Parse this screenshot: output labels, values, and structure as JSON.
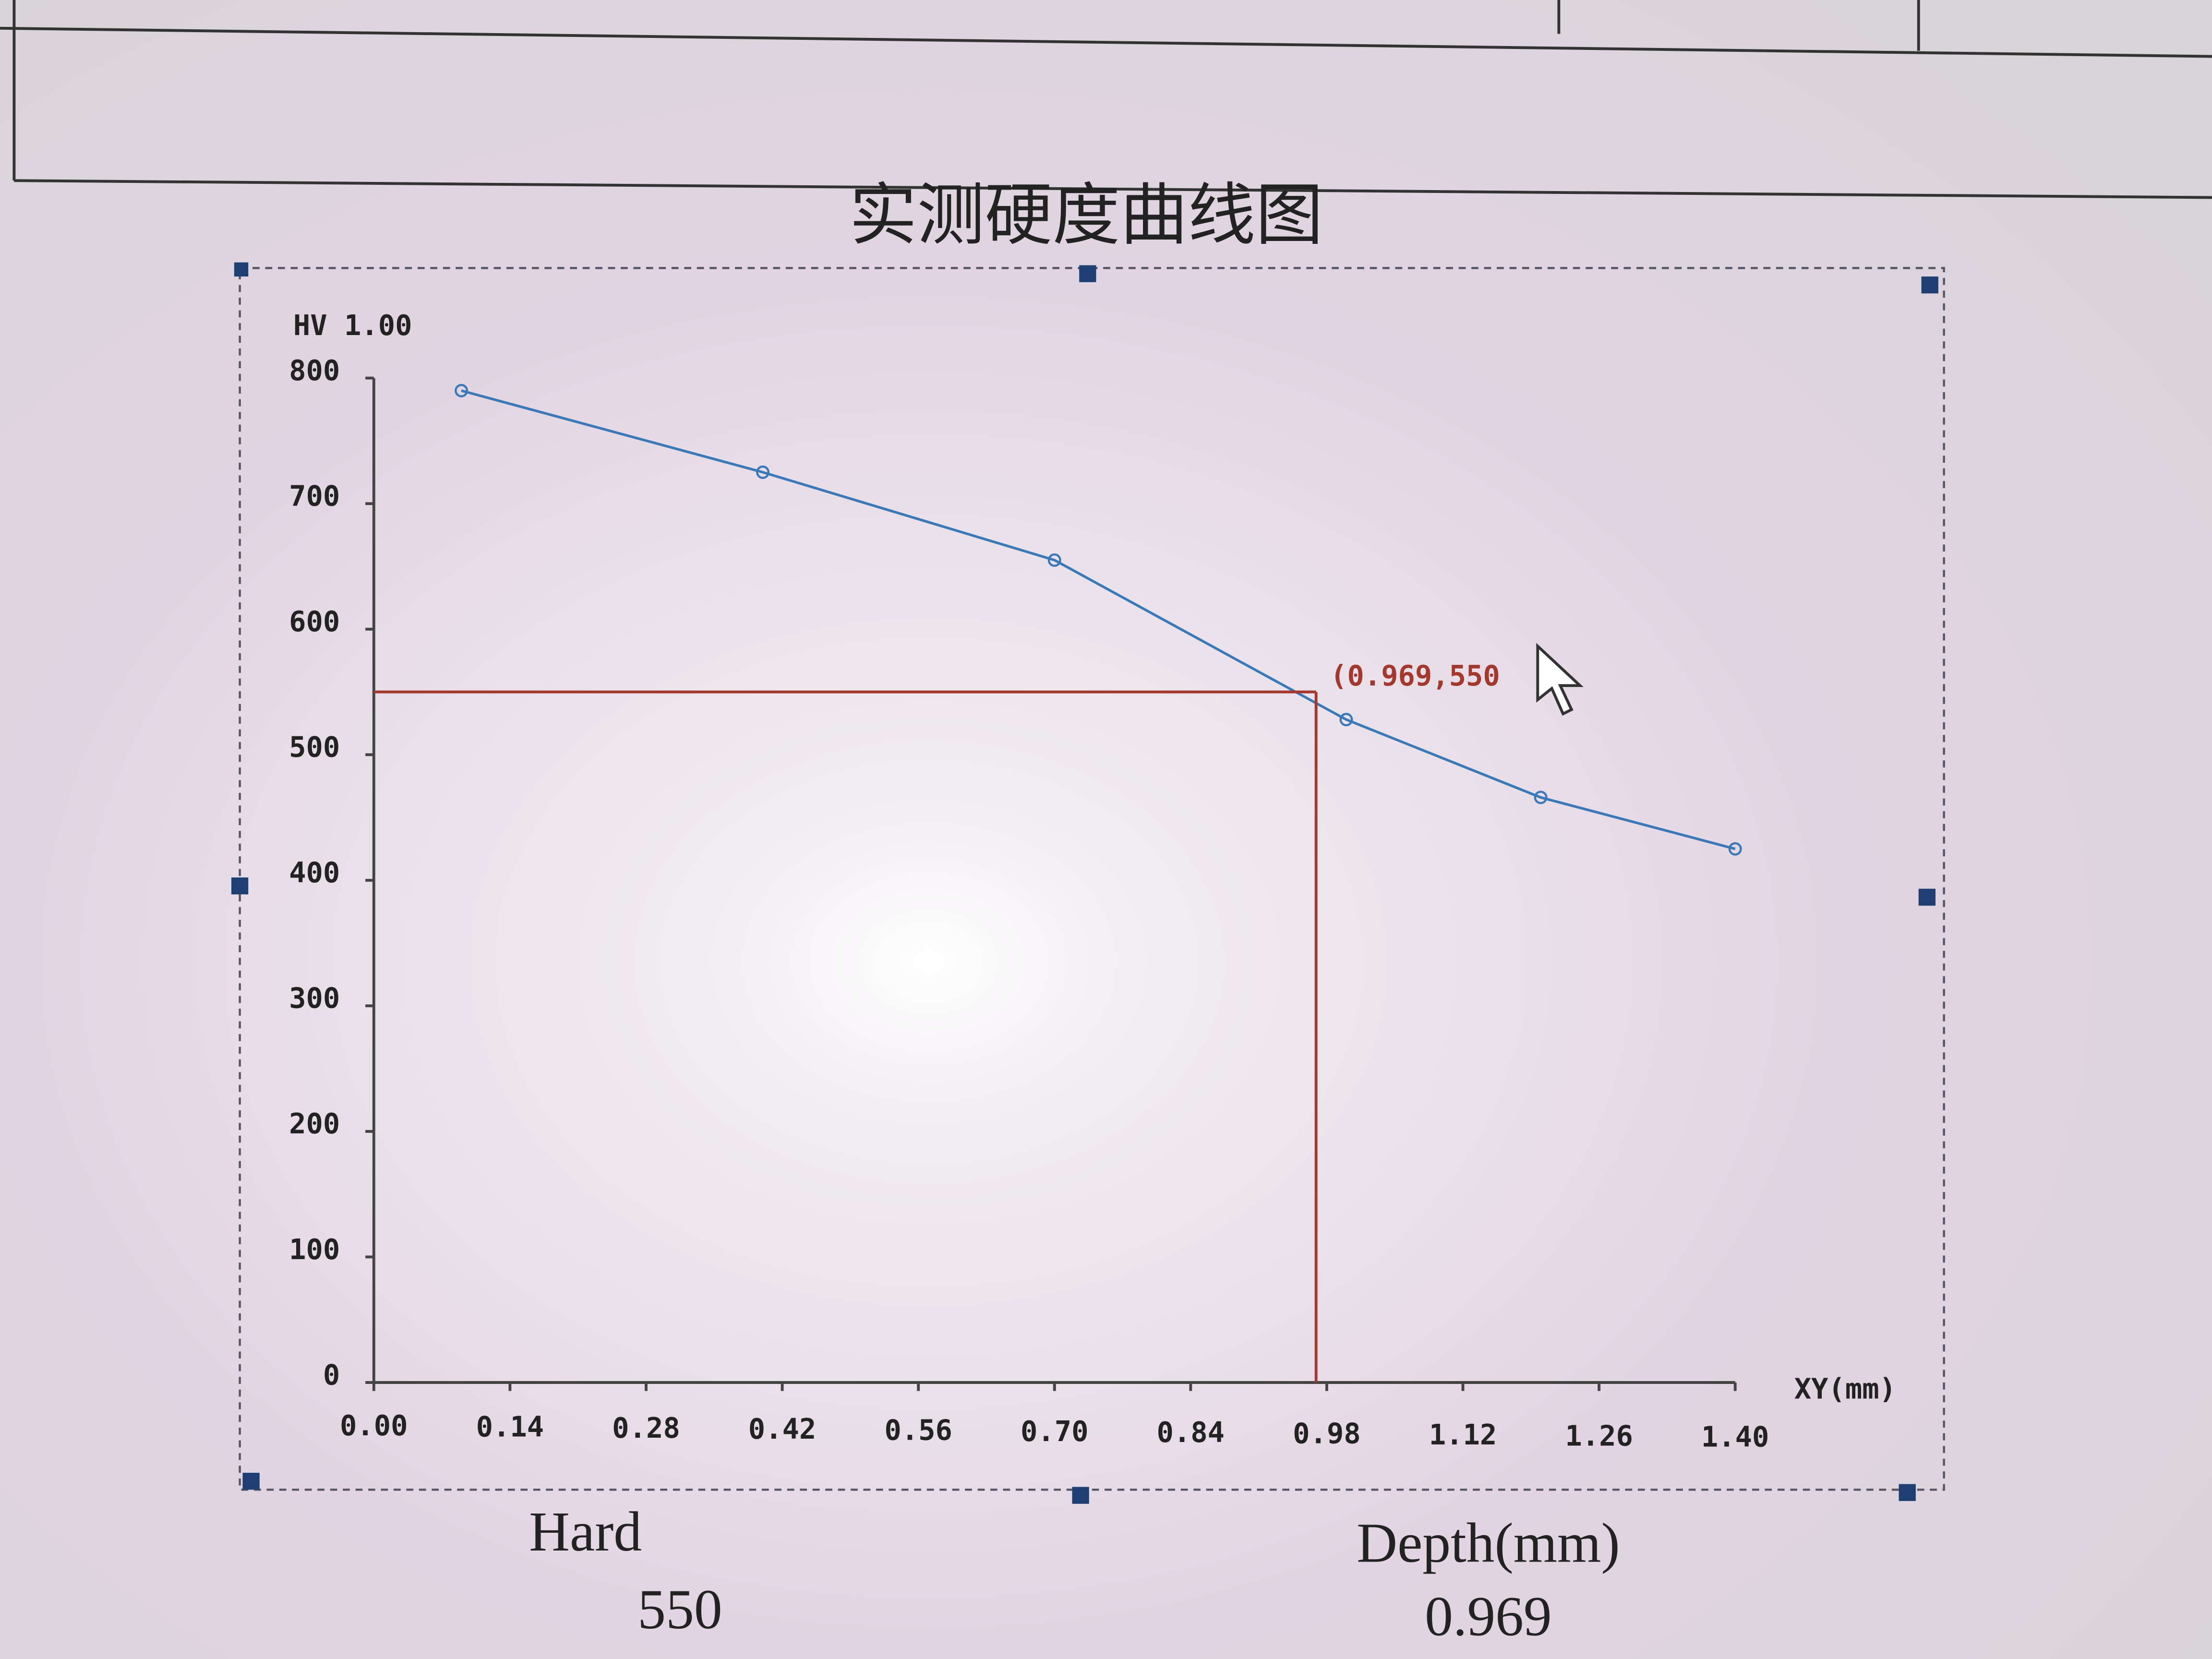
{
  "page_title": "实测硬度曲线图",
  "chart_data": {
    "type": "line",
    "y_label": "HV 1.00",
    "x_label": "XY(mm)",
    "x": [
      0.09,
      0.4,
      0.7,
      1.0,
      1.2,
      1.4
    ],
    "values": [
      790,
      725,
      655,
      528,
      466,
      425
    ],
    "color": "#3a78b8",
    "xlim": [
      0,
      1.4
    ],
    "ylim": [
      0,
      800
    ],
    "xticks": [
      {
        "value": 0,
        "label": "0.00"
      },
      0.14,
      0.28,
      0.42,
      0.56,
      {
        "value": 0.7,
        "label": "0.70"
      },
      0.84,
      0.98,
      1.12,
      1.26,
      {
        "value": 1.4,
        "label": "1.40"
      }
    ],
    "yticks": [
      0,
      100,
      200,
      300,
      400,
      500,
      600,
      700,
      800
    ],
    "marker": {
      "x": 0.969,
      "y": 550,
      "label": "(0.969,550",
      "color": "#a3382e"
    }
  },
  "readout": {
    "hard_label": "Hard",
    "hard_value": 550,
    "depth_label": "Depth(mm)",
    "depth_value": 0.969
  }
}
